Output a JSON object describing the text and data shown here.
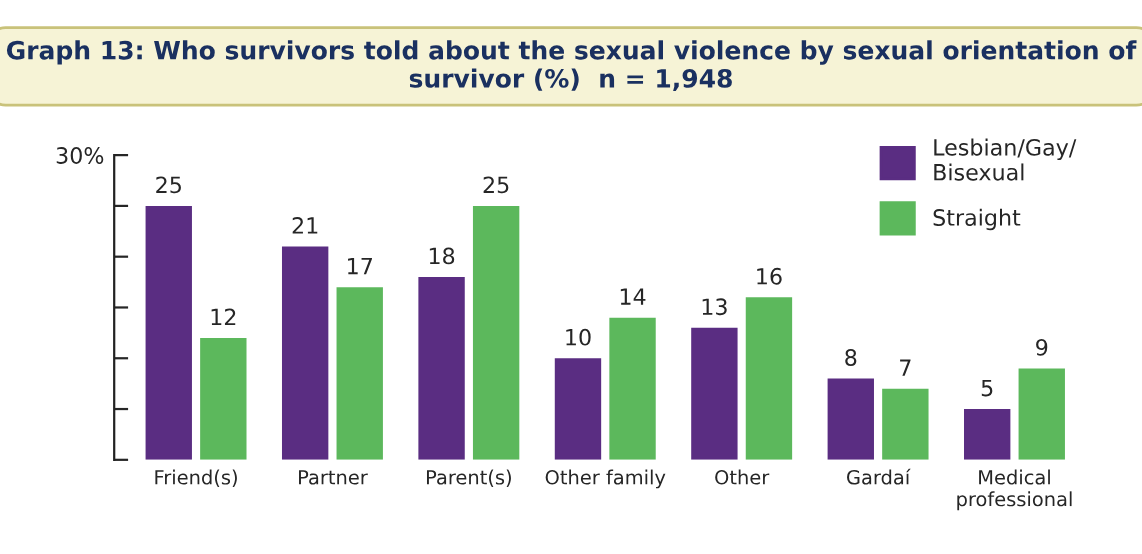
{
  "chart_data": {
    "type": "bar",
    "title": "Graph 13: Who survivors told about the sexual violence by sexual orientation of survivor (%)  n = 1,948",
    "categories": [
      "Friend(s)",
      "Partner",
      "Parent(s)",
      "Other family",
      "Other",
      "Gardaí",
      "Medical\nprofessional"
    ],
    "series": [
      {
        "name": "Lesbian/Gay/\nBisexual",
        "color": "#5a2d82",
        "values": [
          25,
          21,
          18,
          10,
          13,
          8,
          5
        ]
      },
      {
        "name": "Straight",
        "color": "#5cb85c",
        "values": [
          12,
          17,
          25,
          14,
          16,
          7,
          9
        ]
      }
    ],
    "ylim": [
      0,
      30
    ],
    "yticks": [
      {
        "value": 0,
        "label": null
      },
      {
        "value": 5,
        "label": null
      },
      {
        "value": 10,
        "label": null
      },
      {
        "value": 15,
        "label": null
      },
      {
        "value": 20,
        "label": null
      },
      {
        "value": 25,
        "label": null
      },
      {
        "value": 30,
        "label": "30%"
      }
    ],
    "data_labels": true,
    "grid": false,
    "legend": "top right"
  }
}
